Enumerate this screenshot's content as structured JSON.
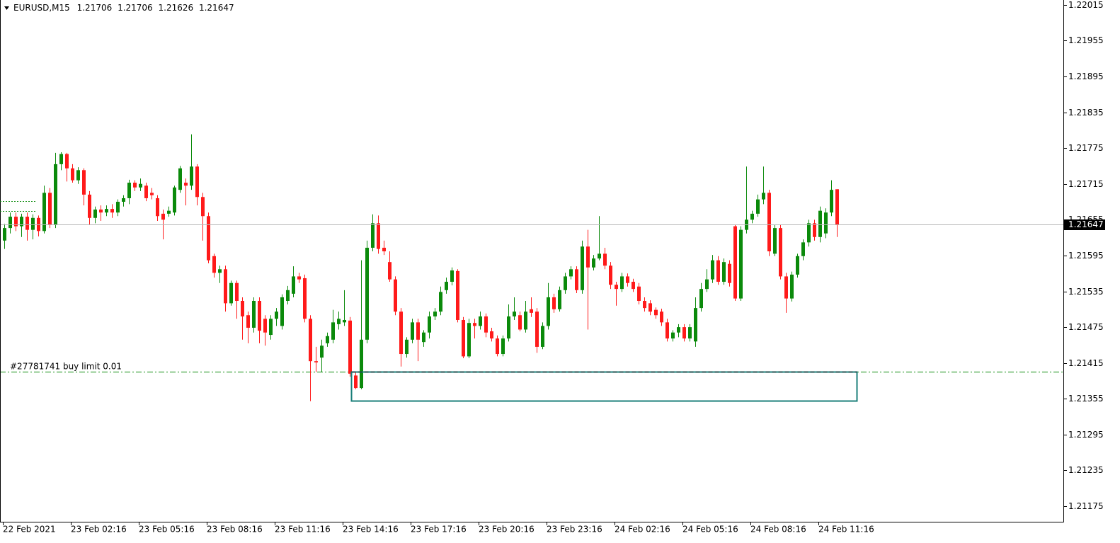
{
  "chart_data": {
    "type": "candlestick",
    "symbol": "EURUSD,M15",
    "order_label": "#27781741 buy limit 0.01",
    "order_price": 1.21401,
    "up_color": "#0b8a0b",
    "down_color": "#ff1a1a",
    "grid": false,
    "ylim": [
      1.21149,
      1.22023
    ],
    "yticks": [
      1.22015,
      1.21955,
      1.21895,
      1.21835,
      1.21775,
      1.21715,
      1.21655,
      1.21595,
      1.21535,
      1.21475,
      1.21415,
      1.21355,
      1.21295,
      1.21235,
      1.21175
    ],
    "categories": [
      "22 Feb 2021",
      null,
      null,
      null,
      null,
      null,
      null,
      null,
      null,
      null,
      null,
      null,
      "23 Feb 02:16",
      null,
      null,
      null,
      null,
      null,
      null,
      null,
      null,
      null,
      null,
      null,
      "23 Feb 05:16",
      null,
      null,
      null,
      null,
      null,
      null,
      null,
      null,
      null,
      null,
      null,
      "23 Feb 08:16",
      null,
      null,
      null,
      null,
      null,
      null,
      null,
      null,
      null,
      null,
      null,
      "23 Feb 11:16",
      null,
      null,
      null,
      null,
      null,
      null,
      null,
      null,
      null,
      null,
      null,
      "23 Feb 14:16",
      null,
      null,
      null,
      null,
      null,
      null,
      null,
      null,
      null,
      null,
      null,
      "23 Feb 17:16",
      null,
      null,
      null,
      null,
      null,
      null,
      null,
      null,
      null,
      null,
      null,
      "23 Feb 20:16",
      null,
      null,
      null,
      null,
      null,
      null,
      null,
      null,
      null,
      null,
      null,
      "23 Feb 23:16",
      null,
      null,
      null,
      null,
      null,
      null,
      null,
      null,
      null,
      null,
      null,
      "24 Feb 02:16",
      null,
      null,
      null,
      null,
      null,
      null,
      null,
      null,
      null,
      null,
      null,
      "24 Feb 05:16",
      null,
      null,
      null,
      null,
      null,
      null,
      null,
      null,
      null,
      null,
      null,
      "24 Feb 08:16",
      null,
      null,
      null,
      null,
      null,
      null,
      null,
      null,
      null,
      null,
      null,
      "24 Feb 11:16",
      null,
      null,
      null
    ],
    "open": [
      1.2162,
      1.21641,
      1.2166,
      1.21644,
      1.2166,
      1.21638,
      1.21658,
      1.21636,
      1.217,
      1.21646,
      1.21748,
      1.21765,
      1.21741,
      1.21721,
      1.21738,
      1.21697,
      1.21658,
      1.21672,
      1.21667,
      1.21673,
      1.21667,
      1.21685,
      1.21691,
      1.21717,
      1.21709,
      1.21712,
      1.217,
      1.21691,
      1.21665,
      1.21665,
      1.21667,
      1.21705,
      1.21717,
      1.21712,
      1.21744,
      1.21693,
      1.21661,
      1.21594,
      1.21566,
      1.21572,
      1.21515,
      1.21549,
      1.21519,
      1.21495,
      1.21474,
      1.21519,
      1.21489,
      1.21462,
      1.21489,
      1.21477,
      1.21519,
      1.21531,
      1.2156,
      1.21557,
      1.21489,
      1.21418,
      1.21424,
      1.21448,
      1.21454,
      1.2148,
      1.21483,
      1.21486,
      1.21394,
      1.21373,
      1.21454,
      1.21608,
      1.21649,
      1.21608,
      1.21584,
      1.21555,
      1.21501,
      1.2143,
      1.21454,
      1.21483,
      1.2145,
      1.21466,
      1.21493,
      1.21501,
      1.21537,
      1.21551,
      1.21569,
      1.21487,
      1.21426,
      1.21482,
      1.21477,
      1.21493,
      1.21468,
      1.21456,
      1.2143,
      1.21456,
      1.21493,
      1.21495,
      1.21471,
      1.21505,
      1.21501,
      1.21442,
      1.21477,
      1.21525,
      1.21505,
      1.21537,
      1.2156,
      1.21572,
      1.21537,
      1.2161,
      1.21575,
      1.2159,
      1.21598,
      1.21578,
      1.21546,
      1.21539,
      1.2156,
      1.21551,
      1.21543,
      1.21519,
      1.21515,
      1.21504,
      1.21501,
      1.21483,
      1.21456,
      1.21466,
      1.21475,
      1.21456,
      1.21451,
      1.21507,
      1.21539,
      1.21555,
      1.21587,
      1.21551,
      1.21581,
      1.21644,
      1.21523,
      1.21638,
      1.21655,
      1.21665,
      1.21689,
      1.217,
      1.21598,
      1.21641,
      1.2156,
      1.21523,
      1.21563,
      1.21594,
      1.21617,
      1.21649,
      1.21626,
      1.21632,
      1.21667,
      1.21706
    ],
    "high": [
      1.21648,
      1.21667,
      1.21667,
      1.21665,
      1.21667,
      1.21664,
      1.21662,
      1.21712,
      1.21708,
      1.21767,
      1.21768,
      1.21767,
      1.21748,
      1.21743,
      1.21741,
      1.21703,
      1.21677,
      1.21679,
      1.21679,
      1.21681,
      1.21689,
      1.21696,
      1.21722,
      1.21721,
      1.21724,
      1.21717,
      1.21708,
      1.21696,
      1.21672,
      1.21677,
      1.21712,
      1.21745,
      1.21724,
      1.21798,
      1.21748,
      1.217,
      1.21667,
      1.21598,
      1.21578,
      1.21578,
      1.21553,
      1.21553,
      1.21525,
      1.21501,
      1.21525,
      1.21525,
      1.21495,
      1.21495,
      1.21507,
      1.2153,
      1.21544,
      1.21577,
      1.21566,
      1.21563,
      1.21495,
      1.21442,
      1.21454,
      1.21466,
      1.21504,
      1.21501,
      1.21537,
      1.21492,
      1.214,
      1.21587,
      1.2162,
      1.21664,
      1.21662,
      1.2162,
      1.21602,
      1.2156,
      1.21507,
      1.21458,
      1.21489,
      1.21489,
      1.2147,
      1.21501,
      1.21507,
      1.21543,
      1.21558,
      1.21575,
      1.21572,
      1.21492,
      1.21489,
      1.21489,
      1.21501,
      1.21498,
      1.21474,
      1.21461,
      1.21461,
      1.21513,
      1.21525,
      1.21501,
      1.21519,
      1.21525,
      1.21507,
      1.21483,
      1.21549,
      1.21531,
      1.21543,
      1.21566,
      1.21577,
      1.21577,
      1.2162,
      1.21638,
      1.21596,
      1.21661,
      1.21608,
      1.21584,
      1.21551,
      1.21566,
      1.21565,
      1.21556,
      1.21549,
      1.21525,
      1.2152,
      1.21508,
      1.21506,
      1.21489,
      1.2147,
      1.2148,
      1.2148,
      1.2148,
      1.21525,
      1.21549,
      1.21572,
      1.21596,
      1.21594,
      1.2159,
      1.21587,
      1.21646,
      1.21644,
      1.21744,
      1.2167,
      1.21697,
      1.21744,
      1.21705,
      1.21646,
      1.21646,
      1.21566,
      1.21568,
      1.21598,
      1.21622,
      1.21655,
      1.21655,
      1.21677,
      1.21674,
      1.21721,
      1.21706
    ],
    "low": [
      1.21606,
      1.21632,
      1.21636,
      1.21626,
      1.2162,
      1.21622,
      1.21627,
      1.21632,
      1.21641,
      1.21641,
      1.21738,
      1.21719,
      1.21717,
      1.21715,
      1.21679,
      1.21646,
      1.21649,
      1.21653,
      1.21661,
      1.21658,
      1.21661,
      1.21677,
      1.21681,
      1.21703,
      1.21703,
      1.21686,
      1.21689,
      1.21653,
      1.21622,
      1.2166,
      1.21662,
      1.217,
      1.21679,
      1.21705,
      1.21679,
      1.2162,
      1.21582,
      1.21558,
      1.21549,
      1.21501,
      1.21511,
      1.21489,
      1.21454,
      1.21448,
      1.21466,
      1.21448,
      1.21444,
      1.21454,
      1.21477,
      1.21471,
      1.21513,
      1.21525,
      1.21549,
      1.21483,
      1.21351,
      1.214,
      1.214,
      1.21442,
      1.21448,
      1.21471,
      1.21477,
      1.21392,
      1.21371,
      1.21371,
      1.21448,
      1.21602,
      1.21598,
      1.21596,
      1.21551,
      1.21495,
      1.21409,
      1.21424,
      1.21448,
      1.21418,
      1.21442,
      1.21456,
      1.21487,
      1.21495,
      1.21531,
      1.21545,
      1.21483,
      1.21423,
      1.21423,
      1.21456,
      1.21471,
      1.21458,
      1.21451,
      1.21426,
      1.21426,
      1.21451,
      1.21487,
      1.21468,
      1.21466,
      1.21492,
      1.21432,
      1.21438,
      1.21471,
      1.21499,
      1.21501,
      1.21531,
      1.21555,
      1.21532,
      1.21531,
      1.21471,
      1.2157,
      1.21587,
      1.21572,
      1.21539,
      1.21511,
      1.21534,
      1.21543,
      1.21534,
      1.21513,
      1.21501,
      1.21495,
      1.21489,
      1.21477,
      1.21451,
      1.21451,
      1.21458,
      1.21451,
      1.21451,
      1.21442,
      1.21501,
      1.21534,
      1.21549,
      1.21546,
      1.21546,
      1.21543,
      1.21519,
      1.21519,
      1.21632,
      1.21649,
      1.2166,
      1.21681,
      1.21594,
      1.21594,
      1.21555,
      1.21499,
      1.21518,
      1.21558,
      1.21587,
      1.2161,
      1.2162,
      1.21617,
      1.21624,
      1.21661,
      1.21626
    ],
    "close": [
      1.21641,
      1.2166,
      1.21644,
      1.2166,
      1.21638,
      1.21658,
      1.21636,
      1.217,
      1.21646,
      1.21748,
      1.21765,
      1.21741,
      1.21721,
      1.21738,
      1.21697,
      1.21658,
      1.21672,
      1.21667,
      1.21673,
      1.21667,
      1.21685,
      1.21691,
      1.21717,
      1.21709,
      1.21715,
      1.21691,
      1.21696,
      1.21661,
      1.21655,
      1.2167,
      1.21709,
      1.21741,
      1.21712,
      1.21744,
      1.21693,
      1.21661,
      1.21587,
      1.21566,
      1.21572,
      1.21515,
      1.21549,
      1.21519,
      1.21493,
      1.21474,
      1.21519,
      1.21469,
      1.21466,
      1.21489,
      1.21501,
      1.21525,
      1.21537,
      1.2156,
      1.21555,
      1.21489,
      1.21418,
      1.21416,
      1.21444,
      1.2146,
      1.21483,
      1.21489,
      1.21487,
      1.21397,
      1.21373,
      1.21454,
      1.21608,
      1.21649,
      1.21606,
      1.21602,
      1.21555,
      1.21501,
      1.2143,
      1.21454,
      1.21483,
      1.21454,
      1.21466,
      1.21493,
      1.21501,
      1.21534,
      1.21551,
      1.2157,
      1.21487,
      1.21426,
      1.21482,
      1.21477,
      1.21493,
      1.21466,
      1.21456,
      1.2143,
      1.21456,
      1.21493,
      1.21501,
      1.21471,
      1.21501,
      1.21499,
      1.21442,
      1.21477,
      1.21525,
      1.21505,
      1.21537,
      1.2156,
      1.21572,
      1.21537,
      1.2161,
      1.21575,
      1.2159,
      1.21598,
      1.21578,
      1.21546,
      1.21539,
      1.2156,
      1.21549,
      1.21539,
      1.21519,
      1.21507,
      1.21501,
      1.21495,
      1.21483,
      1.21456,
      1.21466,
      1.21475,
      1.21456,
      1.21475,
      1.21507,
      1.21539,
      1.21555,
      1.21587,
      1.21551,
      1.21584,
      1.21549,
      1.21523,
      1.21638,
      1.21655,
      1.21665,
      1.21689,
      1.217,
      1.21602,
      1.21641,
      1.2156,
      1.21523,
      1.21563,
      1.21594,
      1.21617,
      1.21649,
      1.21626,
      1.2167,
      1.21667,
      1.21705,
      1.21647
    ]
  }
}
